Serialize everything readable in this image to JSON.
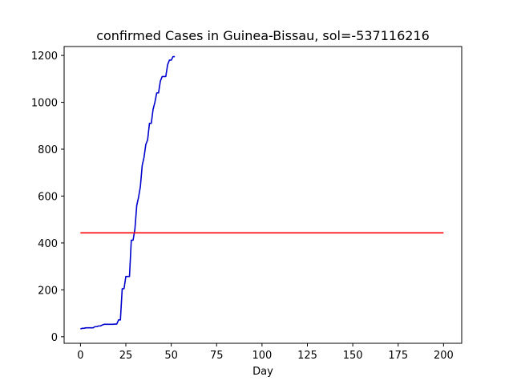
{
  "chart_data": {
    "type": "line",
    "title": "confirmed Cases in Guinea-Bissau, sol=-537116216",
    "xlabel": "Day",
    "ylabel": "",
    "xlim": [
      -9,
      210
    ],
    "ylim": [
      -28,
      1238
    ],
    "xticks": [
      0,
      25,
      50,
      75,
      100,
      125,
      150,
      175,
      200
    ],
    "yticks": [
      0,
      200,
      400,
      600,
      800,
      1000,
      1200
    ],
    "grid": false,
    "series": [
      {
        "color": "#0000cc",
        "x": [
          0,
          1,
          2,
          3,
          4,
          5,
          6,
          7,
          8,
          9,
          10,
          11,
          12,
          13,
          14,
          15,
          16,
          17,
          18,
          19,
          20,
          21,
          22,
          23,
          24,
          25,
          26,
          27,
          28,
          29,
          30,
          31,
          32,
          33,
          34,
          35,
          36,
          37,
          38,
          39,
          40,
          41,
          42,
          43,
          44,
          45,
          46,
          47,
          48,
          49,
          50,
          51,
          52
        ],
        "y": [
          33,
          36,
          36,
          38,
          38,
          38,
          38,
          38,
          43,
          43,
          46,
          46,
          50,
          53,
          53,
          53,
          53,
          53,
          53,
          54,
          54,
          72,
          72,
          205,
          205,
          257,
          257,
          257,
          412,
          412,
          460,
          560,
          595,
          640,
          730,
          765,
          820,
          840,
          910,
          910,
          970,
          1000,
          1040,
          1040,
          1090,
          1110,
          1110,
          1110,
          1160,
          1180,
          1180,
          1195,
          1195
        ]
      },
      {
        "color": "#ff0000",
        "x": [
          0,
          200
        ],
        "y": [
          443,
          443
        ]
      }
    ]
  }
}
